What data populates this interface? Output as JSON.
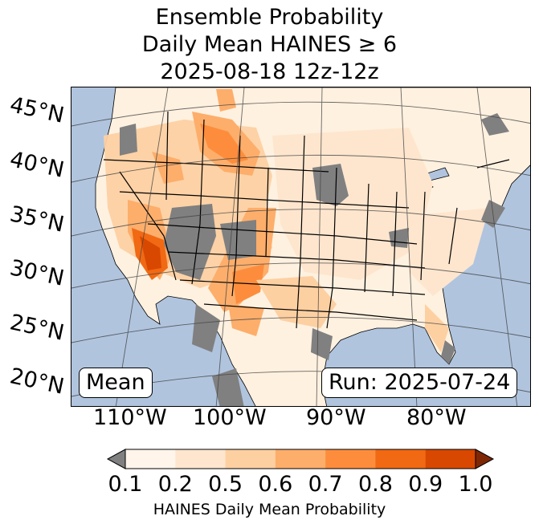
{
  "title": {
    "line1": "Ensemble Probability",
    "line2": "Daily Mean HAINES ≥ 6",
    "line3": "2025-08-18 12z-12z"
  },
  "map": {
    "lat_labels": [
      "45°N",
      "40°N",
      "35°N",
      "30°N",
      "25°N",
      "20°N"
    ],
    "lon_labels": [
      "110°W",
      "100°W",
      "90°W",
      "80°W"
    ],
    "stat_label": "Mean",
    "run_label": "Run: 2025-07-24",
    "colors": {
      "ocean": "#b0c4de",
      "land": "#fff5eb",
      "missing": "#808080"
    }
  },
  "colorbar": {
    "label": "HAINES Daily Mean Probability",
    "ticks": [
      "0.1",
      "0.2",
      "0.5",
      "0.6",
      "0.7",
      "0.8",
      "0.9",
      "1.0"
    ],
    "colors": [
      "#fff5eb",
      "#fee6ce",
      "#fdd0a2",
      "#fdae6b",
      "#fd8d3c",
      "#f16913",
      "#d94801",
      "#a63603"
    ],
    "under_color": "#808080",
    "over_color": "#7f2704"
  }
}
